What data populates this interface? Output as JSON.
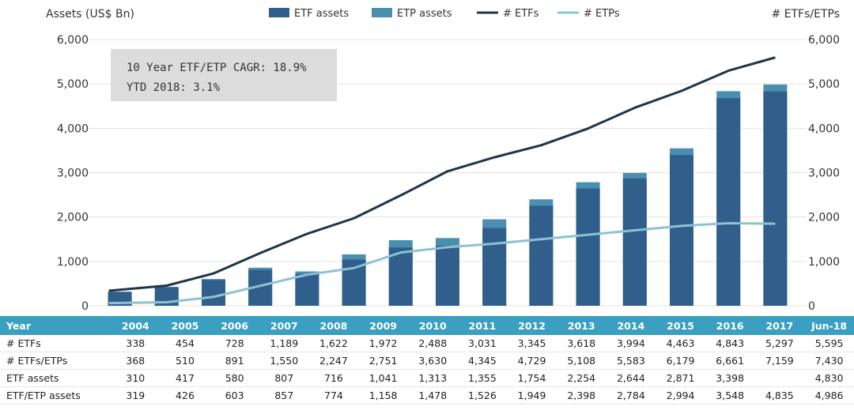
{
  "chart_data": {
    "type": "bar",
    "y_left_label": "Assets (US$ Bn)",
    "y_right_label": "# ETFs/ETPs",
    "ylim": [
      0,
      6000
    ],
    "y_ticks": [
      "0",
      "1,000",
      "2,000",
      "3,000",
      "4,000",
      "5,000",
      "6,000"
    ],
    "categories": [
      "2004",
      "2005",
      "2006",
      "2007",
      "2008",
      "2009",
      "2010",
      "2011",
      "2012",
      "2013",
      "2014",
      "2015",
      "2016",
      "2017",
      "Jun-18"
    ],
    "legend": [
      "ETF assets",
      "ETP assets",
      "# ETFs",
      "# ETPs"
    ],
    "annotation": [
      "10 Year ETF/ETP CAGR: 18.9%",
      "YTD 2018: 3.1%"
    ],
    "series": [
      {
        "name": "ETF assets",
        "kind": "bar",
        "color": "#2f5f8a",
        "values": [
          310,
          417,
          580,
          807,
          716,
          1041,
          1313,
          1355,
          1754,
          2254,
          2644,
          2871,
          3398,
          4680,
          4830
        ]
      },
      {
        "name": "ETF/ETP assets",
        "kind": "bar",
        "color": "#4a8fb0",
        "values": [
          319,
          426,
          603,
          857,
          774,
          1158,
          1478,
          1526,
          1949,
          2398,
          2784,
          2994,
          3548,
          4835,
          4986
        ]
      },
      {
        "name": "# ETFs",
        "kind": "line",
        "color": "#1f3548",
        "values": [
          338,
          454,
          728,
          1189,
          1622,
          1972,
          2488,
          3031,
          3345,
          3618,
          3994,
          4463,
          4843,
          5297,
          5595
        ]
      },
      {
        "name": "# ETFs/ETPs",
        "kind": "line",
        "color": "#8ec1d4",
        "values": [
          60,
          80,
          200,
          450,
          700,
          850,
          1200,
          1320,
          1400,
          1500,
          1600,
          1700,
          1800,
          1860,
          1850
        ]
      }
    ],
    "table": {
      "header_label": "Year",
      "rows": [
        {
          "label": "# ETFs",
          "values": [
            "338",
            "454",
            "728",
            "1,189",
            "1,622",
            "1,972",
            "2,488",
            "3,031",
            "3,345",
            "3,618",
            "3,994",
            "4,463",
            "4,843",
            "5,297",
            "5,595"
          ]
        },
        {
          "label": "# ETFs/ETPs",
          "values": [
            "368",
            "510",
            "891",
            "1,550",
            "2,247",
            "2,751",
            "3,630",
            "4,345",
            "4,729",
            "5,108",
            "5,583",
            "6,179",
            "6,661",
            "7,159",
            "7,430"
          ]
        },
        {
          "label": "ETF assets",
          "values": [
            "310",
            "417",
            "580",
            "807",
            "716",
            "1,041",
            "1,313",
            "1,355",
            "1,754",
            "2,254",
            "2,644",
            "2,871",
            "3,398",
            "",
            "4,830"
          ]
        },
        {
          "label": "ETF/ETP assets",
          "values": [
            "319",
            "426",
            "603",
            "857",
            "774",
            "1,158",
            "1,478",
            "1,526",
            "1,949",
            "2,398",
            "2,784",
            "2,994",
            "3,548",
            "4,835",
            "4,986"
          ]
        }
      ]
    }
  }
}
